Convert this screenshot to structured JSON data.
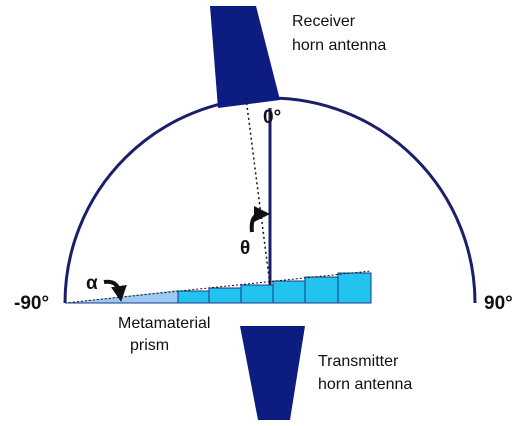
{
  "receiver": {
    "label": [
      "Receiver",
      "horn antenna"
    ]
  },
  "transmitter": {
    "label": [
      "Transmitter",
      "horn antenna"
    ]
  },
  "prism": {
    "label": [
      "Metamaterial",
      "prism"
    ]
  },
  "angles": {
    "zero": "0°",
    "left": "-90°",
    "right": "90°",
    "theta": "θ",
    "alpha": "α"
  }
}
